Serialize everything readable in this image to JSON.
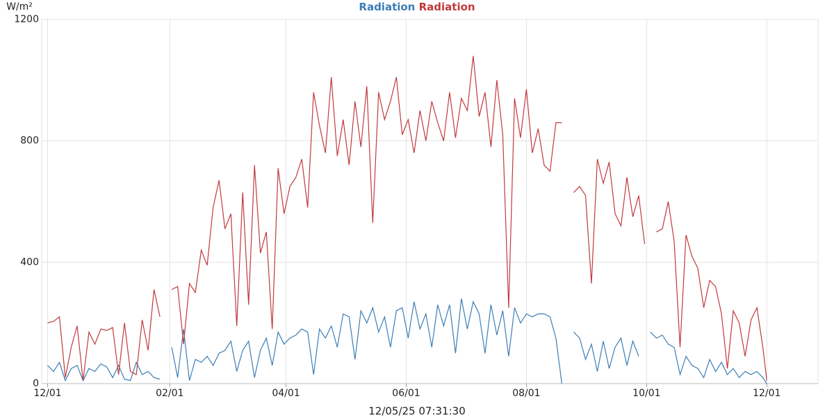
{
  "chart_data": {
    "type": "line",
    "y_label": "W/m²",
    "x_label": "12/05/25 07:31:30",
    "x": [
      0,
      3,
      6,
      9,
      12,
      15,
      18,
      21,
      24,
      27,
      30,
      33,
      36,
      39,
      42,
      45,
      48,
      51,
      54,
      57,
      60,
      63,
      66,
      69,
      72,
      75,
      78,
      81,
      84,
      87,
      90,
      93,
      96,
      99,
      102,
      105,
      108,
      111,
      114,
      117,
      120,
      123,
      126,
      129,
      132,
      135,
      138,
      141,
      144,
      147,
      150,
      153,
      156,
      159,
      162,
      165,
      168,
      171,
      174,
      177,
      180,
      183,
      186,
      189,
      192,
      195,
      198,
      201,
      204,
      207,
      210,
      213,
      216,
      219,
      222,
      225,
      228,
      231,
      234,
      237,
      240,
      243,
      246,
      249,
      252,
      255,
      258,
      261,
      264,
      267,
      270,
      273,
      276,
      279,
      282,
      285,
      288,
      291,
      294,
      297,
      300,
      303,
      306,
      309,
      312,
      315,
      318,
      321,
      324,
      327,
      330,
      333,
      336,
      339,
      342,
      345,
      348,
      351,
      354,
      357,
      360,
      363,
      365
    ],
    "xlim": [
      -3,
      391
    ],
    "xticks": [
      {
        "value": 0,
        "label": "12/01"
      },
      {
        "value": 62,
        "label": "02/01"
      },
      {
        "value": 121,
        "label": "04/01"
      },
      {
        "value": 182,
        "label": "06/01"
      },
      {
        "value": 243,
        "label": "08/01"
      },
      {
        "value": 304,
        "label": "10/01"
      },
      {
        "value": 365,
        "label": "12/01"
      }
    ],
    "ylim": [
      0,
      1200
    ],
    "yticks": [
      0,
      400,
      800,
      1200
    ],
    "grid": true,
    "series": [
      {
        "name": "Radiation",
        "color": "#3b7db5",
        "values": [
          60,
          40,
          70,
          10,
          50,
          60,
          10,
          50,
          40,
          65,
          55,
          20,
          60,
          15,
          10,
          70,
          30,
          40,
          20,
          15,
          null,
          120,
          20,
          180,
          10,
          80,
          70,
          90,
          60,
          100,
          110,
          140,
          40,
          110,
          140,
          20,
          110,
          150,
          60,
          170,
          130,
          150,
          160,
          180,
          170,
          30,
          180,
          150,
          190,
          120,
          230,
          220,
          80,
          240,
          200,
          250,
          170,
          220,
          120,
          240,
          250,
          150,
          270,
          180,
          230,
          120,
          260,
          190,
          260,
          100,
          280,
          180,
          270,
          230,
          100,
          260,
          160,
          240,
          90,
          250,
          200,
          230,
          220,
          230,
          230,
          220,
          150,
          0,
          null,
          170,
          150,
          80,
          130,
          40,
          140,
          50,
          120,
          150,
          60,
          140,
          90,
          null,
          170,
          150,
          160,
          130,
          120,
          30,
          90,
          60,
          50,
          20,
          80,
          40,
          70,
          30,
          50,
          20,
          40,
          30,
          40,
          20,
          0
        ]
      },
      {
        "name": "Radiation",
        "color": "#c0393b",
        "values": [
          200,
          205,
          220,
          20,
          120,
          190,
          10,
          170,
          130,
          180,
          175,
          185,
          30,
          200,
          40,
          30,
          210,
          110,
          310,
          220,
          null,
          310,
          320,
          130,
          330,
          300,
          440,
          390,
          580,
          670,
          510,
          560,
          190,
          630,
          260,
          720,
          430,
          500,
          180,
          710,
          560,
          650,
          680,
          740,
          580,
          960,
          850,
          760,
          1010,
          750,
          870,
          720,
          930,
          780,
          980,
          530,
          960,
          870,
          930,
          1010,
          820,
          870,
          760,
          900,
          800,
          930,
          860,
          800,
          960,
          810,
          940,
          900,
          1080,
          880,
          960,
          780,
          1000,
          820,
          250,
          940,
          810,
          970,
          760,
          840,
          720,
          700,
          860,
          860,
          null,
          630,
          650,
          620,
          330,
          740,
          660,
          730,
          560,
          520,
          680,
          550,
          620,
          460,
          null,
          500,
          510,
          600,
          470,
          120,
          490,
          420,
          380,
          250,
          340,
          320,
          230,
          50,
          240,
          200,
          90,
          210,
          250,
          120,
          10
        ]
      }
    ]
  }
}
